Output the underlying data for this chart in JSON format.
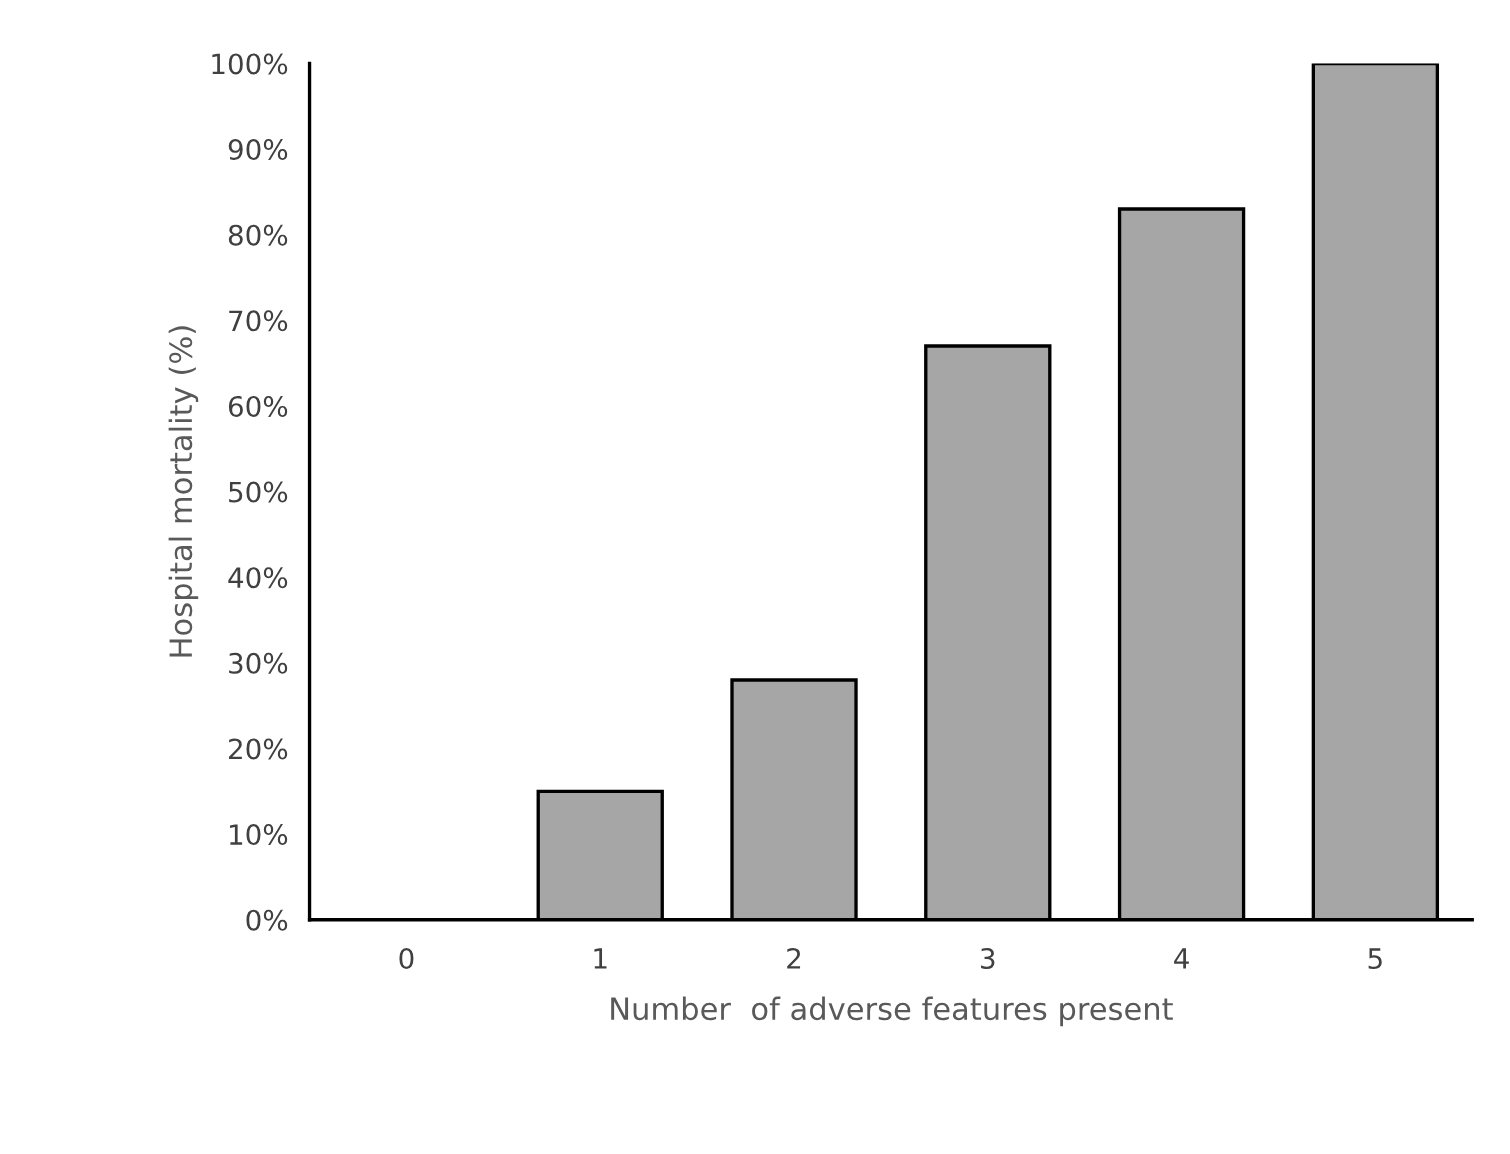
{
  "chart_data": {
    "type": "bar",
    "xlabel": "Number  of adverse features present",
    "ylabel": "Hospital mortality (%)",
    "categories": [
      "0",
      "1",
      "2",
      "3",
      "4",
      "5"
    ],
    "values": [
      0,
      15,
      28,
      67,
      83,
      100
    ],
    "color": "#a6a6a6",
    "ylim": [
      0,
      100
    ],
    "yticks": [
      {
        "value": 0,
        "label": "0%"
      },
      {
        "value": 10,
        "label": "10%"
      },
      {
        "value": 20,
        "label": "20%"
      },
      {
        "value": 30,
        "label": "30%"
      },
      {
        "value": 40,
        "label": "40%"
      },
      {
        "value": 50,
        "label": "50%"
      },
      {
        "value": 60,
        "label": "60%"
      },
      {
        "value": 70,
        "label": "70%"
      },
      {
        "value": 80,
        "label": "80%"
      },
      {
        "value": 90,
        "label": "90%"
      },
      {
        "value": 100,
        "label": "100%"
      }
    ],
    "grid": false
  }
}
